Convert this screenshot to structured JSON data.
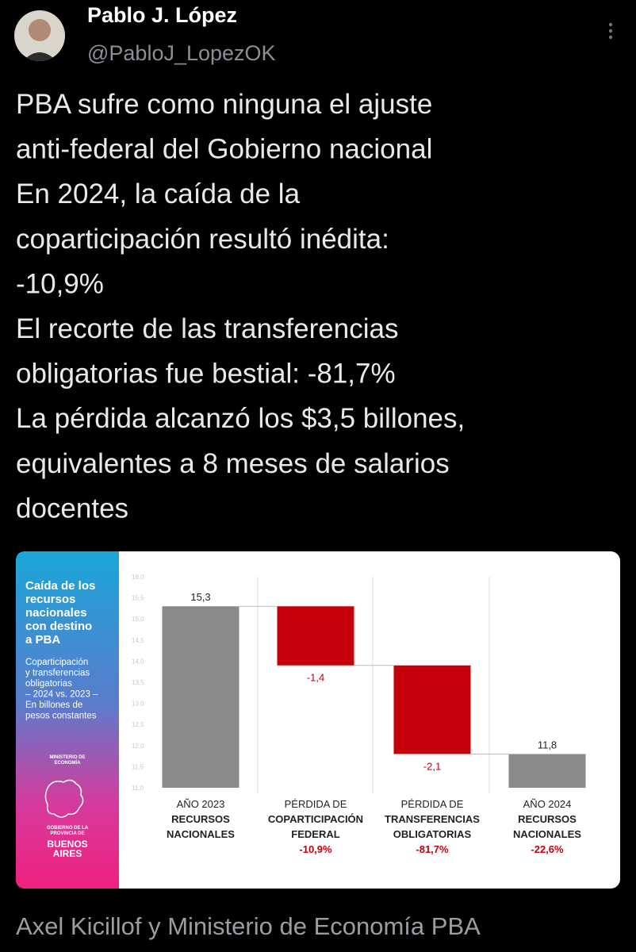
{
  "tweet": {
    "name": "Pablo J. López",
    "handle": "@PabloJ_LopezOK",
    "body_lines": [
      "PBA sufre como ninguna el ajuste",
      "anti-federal del Gobierno nacional",
      "En 2024, la caída de la",
      "coparticipación resultó inédita:",
      "-10,9%",
      "El recorte de las transferencias",
      "obligatorias fue bestial: -81,7%",
      "La pérdida alcanzó los $3,5 billones,",
      "equivalentes a 8 meses de salarios",
      "docentes"
    ],
    "footer": "Axel Kicillof y Ministerio de Economía PBA"
  },
  "panel": {
    "title_lines": [
      "Caída de los",
      "recursos",
      "nacionales",
      "con destino",
      "a PBA"
    ],
    "subtitle_lines": [
      "Coparticipación",
      "y transferencias",
      "obligatorias",
      "– 2024 vs. 2023 –",
      "En billones de",
      "pesos constantes"
    ],
    "ministry_lines": [
      "MINISTERIO DE",
      "ECONOMÍA"
    ],
    "government_lines": [
      "GOBIERNO DE LA",
      "PROVINCIA DE"
    ],
    "province_lines": [
      "BUENOS",
      "AIRES"
    ]
  },
  "chart_data": {
    "type": "waterfall",
    "categories": [
      "AÑO 2023",
      "PÉRDIDA DE",
      "PÉRDIDA DE",
      "AÑO 2024"
    ],
    "category_names": [
      [
        "RECURSOS",
        "NACIONALES"
      ],
      [
        "COPARTICIPACIÓN",
        "FEDERAL"
      ],
      [
        "TRANSFERENCIAS",
        "OBLIGATORIAS"
      ],
      [
        "RECURSOS",
        "NACIONALES"
      ]
    ],
    "category_changes": [
      null,
      "-10,9%",
      "-81,7%",
      "-22,6%"
    ],
    "measure": [
      "absolute",
      "relative",
      "relative",
      "total"
    ],
    "values": [
      15.3,
      -1.4,
      -2.1,
      11.8
    ],
    "value_labels": [
      "15,3",
      "-1,4",
      "-2,1",
      "11,8"
    ],
    "colors": {
      "absolute": "#8a8a8a",
      "relative": "#c4000b",
      "total": "#8a8a8a"
    },
    "ylim": [
      11,
      16
    ],
    "yticks": [
      {
        "value": 11,
        "label": "11,0"
      },
      {
        "value": 11.5,
        "label": "11,5"
      },
      {
        "value": 12,
        "label": "12,0"
      },
      {
        "value": 12.5,
        "label": "12,5"
      },
      {
        "value": 13,
        "label": "13,0"
      },
      {
        "value": 13.5,
        "label": "13,5"
      },
      {
        "value": 14,
        "label": "14,0"
      },
      {
        "value": 14.5,
        "label": "14,5"
      },
      {
        "value": 15,
        "label": "15,0"
      },
      {
        "value": 15.5,
        "label": "15,5"
      },
      {
        "value": 16,
        "label": "16,0"
      }
    ]
  }
}
